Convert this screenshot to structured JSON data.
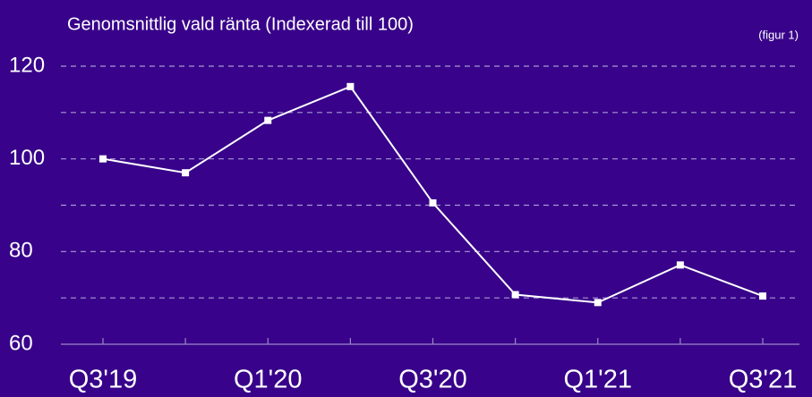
{
  "chart_data": {
    "type": "line",
    "title": "Genomsnittlig vald ränta (Indexerad till 100)",
    "annotation": "(figur 1)",
    "categories": [
      "Q3'19",
      null,
      "Q1'20",
      null,
      "Q3'20",
      null,
      "Q1'21",
      null,
      "Q3'21"
    ],
    "series": [
      {
        "name": "Genomsnittlig vald ränta",
        "color": "#ffffff",
        "values": [
          100,
          97,
          108.3,
          115.6,
          90.5,
          70.7,
          69,
          77.1,
          70.4
        ]
      }
    ],
    "ylim": [
      60,
      120
    ],
    "yticks": [
      60,
      80,
      100,
      120
    ],
    "minor_yticks": [
      70,
      90,
      110
    ],
    "grid": true
  }
}
